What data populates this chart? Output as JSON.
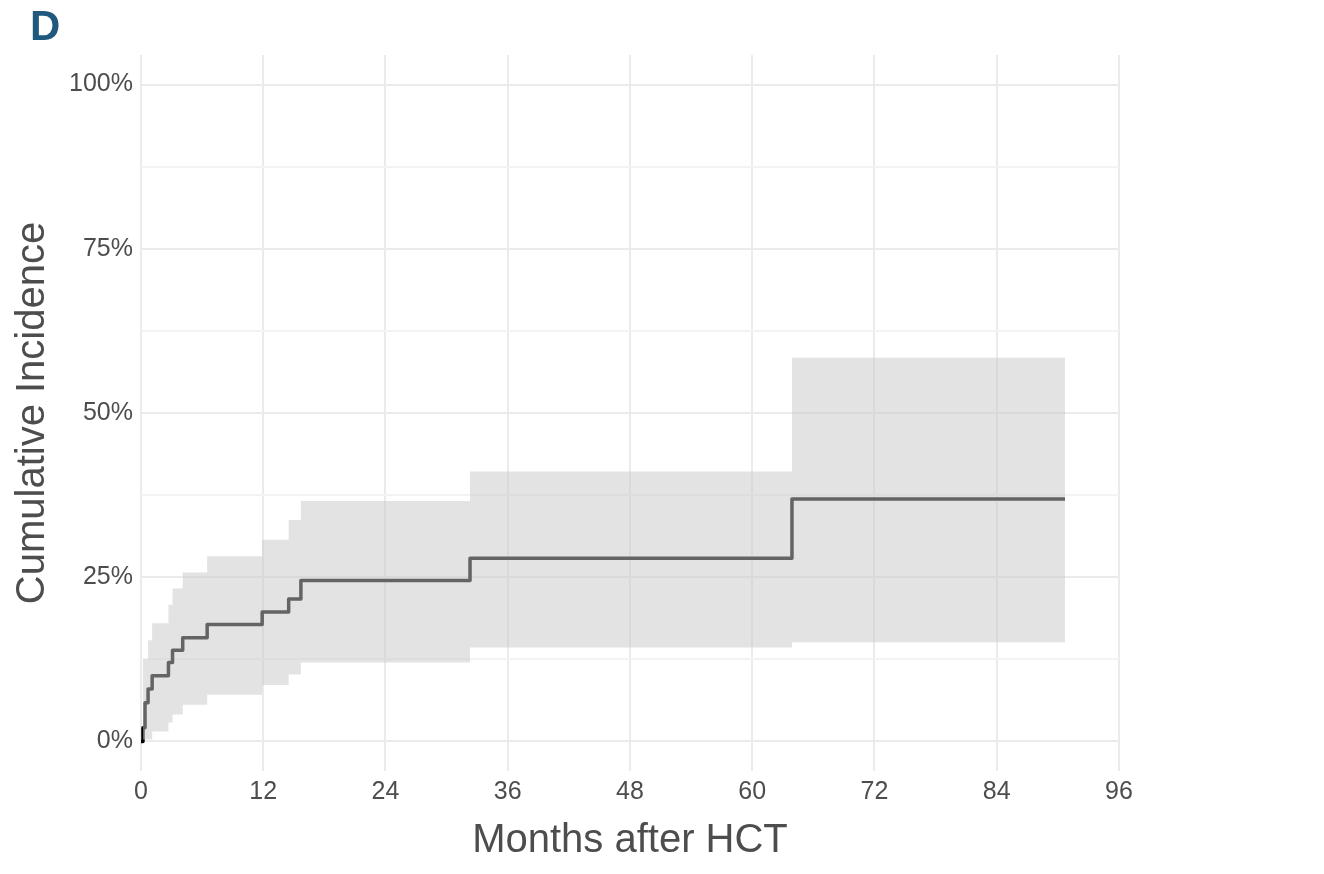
{
  "chart_data": {
    "type": "step",
    "title": "D",
    "xlabel": "Months after HCT",
    "ylabel": "Cumulative Incidence",
    "x": [
      0,
      0.2,
      0.4,
      0.7,
      1.1,
      2.7,
      3.1,
      4.1,
      6.5,
      11.9,
      14.5,
      15.7,
      32.3,
      63.9,
      90.7
    ],
    "series": [
      {
        "color": "#000000",
        "values": [
          0,
          2.1,
          5.9,
          8,
          10,
          12,
          13.9,
          15.8,
          17.8,
          19.7,
          21.7,
          24.5,
          27.9,
          36.9,
          36.9
        ],
        "lower": [
          0,
          0.3,
          0.3,
          0.3,
          1.5,
          2.9,
          4.1,
          5.6,
          7.1,
          8.6,
          10.2,
          12,
          14.3,
          15.1,
          15.1
        ],
        "upper": [
          0,
          12.5,
          12.5,
          15.4,
          18,
          20.8,
          23.3,
          25.7,
          28.2,
          30.7,
          33.7,
          36.6,
          41.1,
          58.4,
          58.4
        ]
      }
    ],
    "xlim": [
      0,
      96
    ],
    "xticks": [
      0,
      12,
      24,
      36,
      48,
      60,
      72,
      84,
      96
    ],
    "ylim": [
      -4.5,
      104.5
    ],
    "yticks": [
      {
        "value": 0,
        "label": "0%"
      },
      {
        "value": 12.5,
        "label": null
      },
      {
        "value": 25,
        "label": "25%"
      },
      {
        "value": 37.5,
        "label": null
      },
      {
        "value": 50,
        "label": "50%"
      },
      {
        "value": 62.5,
        "label": null
      },
      {
        "value": 75,
        "label": "75%"
      },
      {
        "value": 87.5,
        "label": null
      },
      {
        "value": 100,
        "label": "100%"
      }
    ],
    "grid": true,
    "legend": false,
    "line_style": "solid",
    "marker": "none"
  }
}
